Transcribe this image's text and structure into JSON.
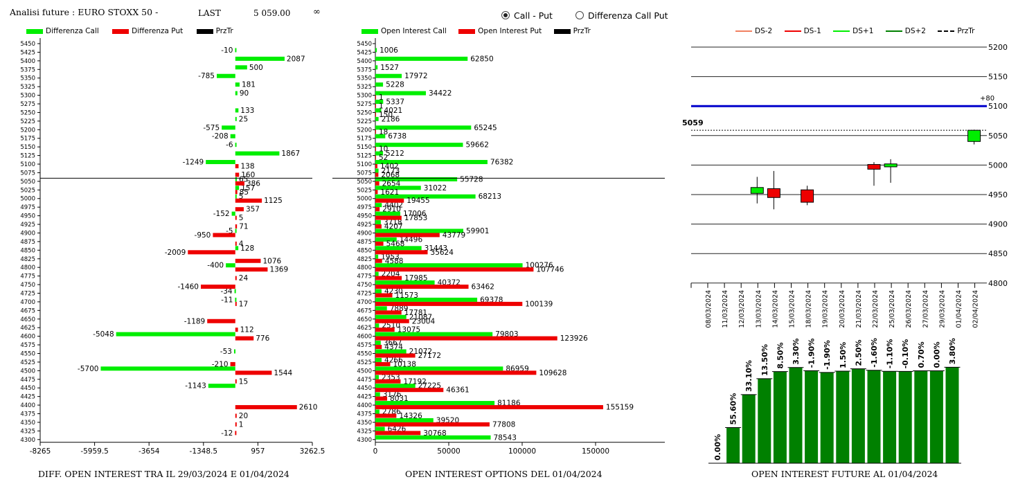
{
  "header": {
    "title": "Analisi future : EURO STOXX 50 -",
    "last_label": "LAST",
    "last_value": "5 059.00",
    "infinity": "∞"
  },
  "options": [
    {
      "label": "Call - Put",
      "selected": true
    },
    {
      "label": "Differenza Call Put",
      "selected": false
    }
  ],
  "colors": {
    "green": "#00ee00",
    "red": "#ee0000",
    "blue": "#0000cc",
    "dark_green": "#008000",
    "black": "#000000"
  },
  "strikes": [
    5450,
    5425,
    5400,
    5375,
    5350,
    5325,
    5300,
    5275,
    5250,
    5225,
    5200,
    5175,
    5150,
    5125,
    5100,
    5075,
    5050,
    5025,
    5000,
    4975,
    4950,
    4925,
    4900,
    4875,
    4850,
    4825,
    4800,
    4775,
    4750,
    4725,
    4700,
    4675,
    4650,
    4625,
    4600,
    4575,
    4550,
    4525,
    4500,
    4475,
    4450,
    4425,
    4400,
    4375,
    4350,
    4325,
    4300
  ],
  "left_panel": {
    "legend": [
      "Differenza Call",
      "Differenza Put",
      "PrzTr"
    ],
    "x_ticks": [
      "-8265",
      "-5959.5",
      "-3654",
      "-1348.5",
      "957",
      "3262.5"
    ],
    "footer": "DIFF. OPEN INTEREST TRA IL 29/03/2024 E 01/04/2024",
    "chart_data": {
      "type": "bar",
      "orientation": "horizontal",
      "xlim": [
        -8265,
        3262.5
      ],
      "prz_tr": 5059,
      "series": [
        {
          "name": "Differenza Call",
          "points": [
            {
              "strike": 5425,
              "value": -10
            },
            {
              "strike": 5400,
              "value": 2087
            },
            {
              "strike": 5375,
              "value": 500
            },
            {
              "strike": 5350,
              "value": -785
            },
            {
              "strike": 5325,
              "value": 181
            },
            {
              "strike": 5300,
              "value": 90
            },
            {
              "strike": 5250,
              "value": 133
            },
            {
              "strike": 5225,
              "value": 25
            },
            {
              "strike": 5200,
              "value": -575
            },
            {
              "strike": 5175,
              "value": -208
            },
            {
              "strike": 5150,
              "value": -6
            },
            {
              "strike": 5125,
              "value": 1867
            },
            {
              "strike": 5100,
              "value": -1249
            },
            {
              "strike": 5050,
              "value": 65
            },
            {
              "strike": 5025,
              "value": 157
            },
            {
              "strike": 5000,
              "value": 5
            },
            {
              "strike": 4950,
              "value": -152
            },
            {
              "strike": 4900,
              "value": -5
            },
            {
              "strike": 4850,
              "value": 128
            },
            {
              "strike": 4800,
              "value": -400
            },
            {
              "strike": 4725,
              "value": -34
            },
            {
              "strike": 4700,
              "value": -11
            },
            {
              "strike": 4600,
              "value": -5048
            },
            {
              "strike": 4550,
              "value": -53
            },
            {
              "strike": 4500,
              "value": -5700
            },
            {
              "strike": 4450,
              "value": -1143
            }
          ]
        },
        {
          "name": "Differenza Put",
          "points": [
            {
              "strike": 5100,
              "value": 138
            },
            {
              "strike": 5075,
              "value": 160
            },
            {
              "strike": 5050,
              "value": 386
            },
            {
              "strike": 5025,
              "value": 85
            },
            {
              "strike": 5000,
              "value": 1125
            },
            {
              "strike": 4975,
              "value": 357
            },
            {
              "strike": 4950,
              "value": 5
            },
            {
              "strike": 4925,
              "value": 71
            },
            {
              "strike": 4900,
              "value": -950
            },
            {
              "strike": 4875,
              "value": 4
            },
            {
              "strike": 4850,
              "value": -2009
            },
            {
              "strike": 4825,
              "value": 1076
            },
            {
              "strike": 4800,
              "value": 1369
            },
            {
              "strike": 4775,
              "value": 24
            },
            {
              "strike": 4750,
              "value": -1460
            },
            {
              "strike": 4700,
              "value": 17
            },
            {
              "strike": 4650,
              "value": -1189
            },
            {
              "strike": 4625,
              "value": 112
            },
            {
              "strike": 4600,
              "value": 776
            },
            {
              "strike": 4525,
              "value": -210
            },
            {
              "strike": 4500,
              "value": 1544
            },
            {
              "strike": 4475,
              "value": 15
            },
            {
              "strike": 4400,
              "value": 2610
            },
            {
              "strike": 4375,
              "value": 20
            },
            {
              "strike": 4350,
              "value": 1
            },
            {
              "strike": 4325,
              "value": -12
            }
          ]
        }
      ]
    }
  },
  "middle_panel": {
    "legend": [
      "Open Interest Call",
      "Open Interest Put",
      "PrzTr"
    ],
    "x_ticks": [
      "0",
      "50000",
      "100000",
      "150000"
    ],
    "footer": "OPEN INTEREST OPTIONS DEL 01/04/2024",
    "chart_data": {
      "type": "bar",
      "orientation": "horizontal",
      "xlim": [
        0,
        200000
      ],
      "prz_tr": 5059,
      "series": [
        {
          "name": "Open Interest Call",
          "points": [
            {
              "strike": 5425,
              "value": 1006
            },
            {
              "strike": 5400,
              "value": 62850
            },
            {
              "strike": 5375,
              "value": 1527
            },
            {
              "strike": 5350,
              "value": 17972
            },
            {
              "strike": 5325,
              "value": 5228
            },
            {
              "strike": 5300,
              "value": 34422
            },
            {
              "strike": 5275,
              "value": 5337
            },
            {
              "strike": 5250,
              "value": 4021
            },
            {
              "strike": 5225,
              "value": 2186
            },
            {
              "strike": 5200,
              "value": 65245
            },
            {
              "strike": 5175,
              "value": 6738
            },
            {
              "strike": 5150,
              "value": 59662
            },
            {
              "strike": 5125,
              "value": 5212
            },
            {
              "strike": 5100,
              "value": 76382
            },
            {
              "strike": 5075,
              "value": 2173
            },
            {
              "strike": 5050,
              "value": 55728
            },
            {
              "strike": 5025,
              "value": 31022
            },
            {
              "strike": 5000,
              "value": 68213
            },
            {
              "strike": 4975,
              "value": 4402
            },
            {
              "strike": 4950,
              "value": 17006
            },
            {
              "strike": 4925,
              "value": 3718
            },
            {
              "strike": 4900,
              "value": 59901
            },
            {
              "strike": 4875,
              "value": 14496
            },
            {
              "strike": 4850,
              "value": 31443
            },
            {
              "strike": 4825,
              "value": 1953
            },
            {
              "strike": 4800,
              "value": 100276
            },
            {
              "strike": 4775,
              "value": 2204
            },
            {
              "strike": 4750,
              "value": 40372
            },
            {
              "strike": 4725,
              "value": 4230
            },
            {
              "strike": 4700,
              "value": 69378
            },
            {
              "strike": 4675,
              "value": 7889
            },
            {
              "strike": 4650,
              "value": 21087
            },
            {
              "strike": 4625,
              "value": 2510
            },
            {
              "strike": 4600,
              "value": 79803
            },
            {
              "strike": 4575,
              "value": 3667
            },
            {
              "strike": 4550,
              "value": 21072
            },
            {
              "strike": 4525,
              "value": 4266
            },
            {
              "strike": 4500,
              "value": 86959
            },
            {
              "strike": 4475,
              "value": 2353
            },
            {
              "strike": 4450,
              "value": 27225
            },
            {
              "strike": 4425,
              "value": 3176
            },
            {
              "strike": 4400,
              "value": 81186
            },
            {
              "strike": 4375,
              "value": 2786
            },
            {
              "strike": 4350,
              "value": 39520
            },
            {
              "strike": 4325,
              "value": 6426
            },
            {
              "strike": 4300,
              "value": 78543
            }
          ]
        },
        {
          "name": "Open Interest Put",
          "points": [
            {
              "strike": 5300,
              "value": 1
            },
            {
              "strike": 5275,
              "value": 1
            },
            {
              "strike": 5250,
              "value": 150
            },
            {
              "strike": 5200,
              "value": 18
            },
            {
              "strike": 5150,
              "value": 10
            },
            {
              "strike": 5125,
              "value": 52
            },
            {
              "strike": 5100,
              "value": 1402
            },
            {
              "strike": 5075,
              "value": 2068
            },
            {
              "strike": 5050,
              "value": 2654
            },
            {
              "strike": 5025,
              "value": 1621
            },
            {
              "strike": 5000,
              "value": 19455
            },
            {
              "strike": 4975,
              "value": 2910
            },
            {
              "strike": 4950,
              "value": 17853
            },
            {
              "strike": 4925,
              "value": 4207
            },
            {
              "strike": 4900,
              "value": 43779
            },
            {
              "strike": 4875,
              "value": 5468
            },
            {
              "strike": 4850,
              "value": 35624
            },
            {
              "strike": 4825,
              "value": 4588
            },
            {
              "strike": 4800,
              "value": 107746
            },
            {
              "strike": 4775,
              "value": 17985
            },
            {
              "strike": 4750,
              "value": 63462
            },
            {
              "strike": 4725,
              "value": 11573
            },
            {
              "strike": 4700,
              "value": 100139
            },
            {
              "strike": 4675,
              "value": 17781
            },
            {
              "strike": 4650,
              "value": 23004
            },
            {
              "strike": 4625,
              "value": 13075
            },
            {
              "strike": 4600,
              "value": 123926
            },
            {
              "strike": 4575,
              "value": 4374
            },
            {
              "strike": 4550,
              "value": 27172
            },
            {
              "strike": 4525,
              "value": 10138
            },
            {
              "strike": 4500,
              "value": 109628
            },
            {
              "strike": 4475,
              "value": 17192
            },
            {
              "strike": 4450,
              "value": 46361
            },
            {
              "strike": 4425,
              "value": 8031
            },
            {
              "strike": 4400,
              "value": 155159
            },
            {
              "strike": 4375,
              "value": 14326
            },
            {
              "strike": 4350,
              "value": 77808
            },
            {
              "strike": 4325,
              "value": 30768
            }
          ]
        }
      ]
    }
  },
  "right_panel": {
    "legend": [
      "DS-2",
      "DS-1",
      "DS+1",
      "DS+2",
      "PrzTr"
    ],
    "legend_colors": [
      "#f08060",
      "#ee0000",
      "#00ee00",
      "#008000",
      "#000000"
    ],
    "y_ticks": [
      "5200",
      "5150",
      "5100",
      "5050",
      "5000",
      "4950",
      "4900",
      "4850",
      "4800"
    ],
    "price_label": "5059",
    "offset_label": "+80",
    "footer": "OPEN INTEREST FUTURE AL 01/04/2024",
    "candle_chart": {
      "type": "candlestick",
      "ylim": [
        4800,
        5200
      ],
      "blue_level": 5100,
      "prz_tr": 5059,
      "dates": [
        "08/03/2024",
        "11/03/2024",
        "12/03/2024",
        "13/03/2024",
        "14/03/2024",
        "15/03/2024",
        "18/03/2024",
        "19/03/2024",
        "20/03/2024",
        "21/03/2024",
        "22/03/2024",
        "25/03/2024",
        "26/03/2024",
        "27/03/2024",
        "29/03/2024",
        "01/04/2024",
        "02/04/2024"
      ],
      "candles": [
        {
          "date": "13/03/2024",
          "open": 4952,
          "close": 4962,
          "high": 4980,
          "low": 4935,
          "up": true
        },
        {
          "date": "14/03/2024",
          "open": 4960,
          "close": 4945,
          "high": 4990,
          "low": 4925,
          "up": false
        },
        {
          "date": "18/03/2024",
          "open": 4958,
          "close": 4937,
          "high": 4965,
          "low": 4932,
          "up": false
        },
        {
          "date": "22/03/2024",
          "open": 5001,
          "close": 4993,
          "high": 5005,
          "low": 4965,
          "up": false
        },
        {
          "date": "25/03/2024",
          "open": 4997,
          "close": 5002,
          "high": 5010,
          "low": 4970,
          "up": true
        },
        {
          "date": "02/04/2024",
          "open": 5040,
          "close": 5059,
          "high": 5060,
          "low": 5035,
          "up": true
        }
      ]
    },
    "pct_chart": {
      "type": "bar",
      "labels": [
        "0.00%",
        "55.60%",
        "33.10%",
        "13.50%",
        "8.50%",
        "3.30%",
        "-1.90%",
        "-1.90%",
        "1.50%",
        "2.50%",
        "-1.60%",
        "-1.10%",
        "-0.10%",
        "0.70%",
        "0.00%",
        "3.80%"
      ],
      "relative_values": [
        0,
        0.3459,
        0.6652,
        0.8198,
        0.8883,
        0.9277,
        0.8967,
        0.8797,
        0.8929,
        0.9152,
        0.9006,
        0.8907,
        0.8898,
        0.896,
        0.896,
        0.9301
      ]
    }
  }
}
